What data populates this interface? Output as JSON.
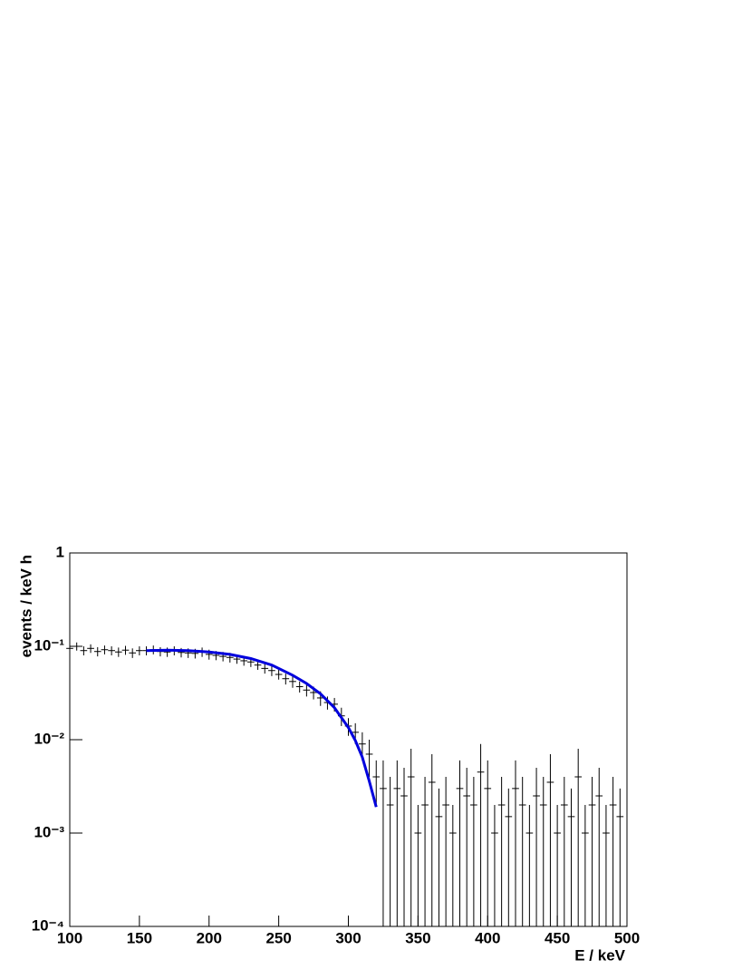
{
  "chart_data": {
    "type": "histogram-fit",
    "x_label": "E / keV",
    "y_label": "events / keV h",
    "xlim": [
      100,
      500
    ],
    "xticks": [
      100,
      150,
      200,
      250,
      300,
      350,
      400,
      450,
      500
    ],
    "ylim": [
      0.0001,
      1
    ],
    "log_y": true,
    "yticks": [
      {
        "value": 0.0001,
        "label": "10⁻⁴"
      },
      {
        "value": 0.001,
        "label": "10⁻³"
      },
      {
        "value": 0.01,
        "label": "10⁻²"
      },
      {
        "value": 0.1,
        "label": "10⁻¹"
      },
      1
    ],
    "data": {
      "color": "#000000",
      "x": [
        100,
        105,
        110,
        115,
        120,
        125,
        130,
        135,
        140,
        145,
        150,
        155,
        160,
        165,
        170,
        175,
        180,
        185,
        190,
        195,
        200,
        205,
        210,
        215,
        220,
        225,
        230,
        235,
        240,
        245,
        250,
        255,
        260,
        265,
        270,
        275,
        280,
        285,
        290,
        295,
        300,
        305,
        310,
        315,
        320,
        325,
        330,
        335,
        340,
        345,
        350,
        355,
        360,
        365,
        370,
        375,
        380,
        385,
        390,
        395,
        400,
        405,
        410,
        415,
        420,
        425,
        430,
        435,
        440,
        445,
        450,
        455,
        460,
        465,
        470,
        475,
        480,
        485,
        490,
        495
      ],
      "values": [
        0.095,
        0.1,
        0.09,
        0.095,
        0.088,
        0.092,
        0.09,
        0.087,
        0.091,
        0.085,
        0.09,
        0.09,
        0.092,
        0.088,
        0.087,
        0.09,
        0.086,
        0.085,
        0.084,
        0.087,
        0.082,
        0.08,
        0.078,
        0.076,
        0.073,
        0.07,
        0.068,
        0.063,
        0.058,
        0.055,
        0.05,
        0.045,
        0.042,
        0.037,
        0.034,
        0.032,
        0.028,
        0.025,
        0.024,
        0.018,
        0.014,
        0.012,
        0.009,
        0.007,
        0.004,
        0.003,
        0.002,
        0.003,
        0.0025,
        0.004,
        0.001,
        0.002,
        0.0035,
        0.0015,
        0.002,
        0.001,
        0.003,
        0.0025,
        0.002,
        0.0045,
        0.003,
        0.001,
        0.002,
        0.0015,
        0.003,
        0.002,
        0.001,
        0.0025,
        0.002,
        0.0035,
        0.001,
        0.002,
        0.0015,
        0.004,
        0.001,
        0.002,
        0.0025,
        0.001,
        0.002,
        0.0015
      ],
      "errors": [
        0.01,
        0.01,
        0.01,
        0.01,
        0.01,
        0.01,
        0.01,
        0.01,
        0.01,
        0.01,
        0.01,
        0.01,
        0.01,
        0.01,
        0.01,
        0.01,
        0.01,
        0.01,
        0.01,
        0.01,
        0.01,
        0.009,
        0.009,
        0.009,
        0.008,
        0.008,
        0.008,
        0.007,
        0.007,
        0.007,
        0.006,
        0.006,
        0.006,
        0.005,
        0.005,
        0.005,
        0.005,
        0.004,
        0.004,
        0.004,
        0.003,
        0.003,
        0.003,
        0.003,
        0.002,
        0.003,
        0.002,
        0.003,
        0.0025,
        0.004,
        0.001,
        0.002,
        0.0035,
        0.0015,
        0.002,
        0.001,
        0.003,
        0.0025,
        0.002,
        0.0045,
        0.003,
        0.001,
        0.002,
        0.0015,
        0.003,
        0.002,
        0.001,
        0.0025,
        0.002,
        0.0035,
        0.001,
        0.002,
        0.0015,
        0.004,
        0.001,
        0.002,
        0.0025,
        0.001,
        0.002,
        0.0015
      ]
    },
    "fit": {
      "color": "#0000dd",
      "x": [
        155,
        170,
        185,
        200,
        215,
        230,
        245,
        260,
        270,
        280,
        290,
        300,
        305,
        310,
        315,
        320
      ],
      "values": [
        0.09,
        0.091,
        0.09,
        0.087,
        0.082,
        0.074,
        0.063,
        0.049,
        0.04,
        0.031,
        0.022,
        0.0135,
        0.0098,
        0.0065,
        0.0036,
        0.0019
      ]
    }
  }
}
